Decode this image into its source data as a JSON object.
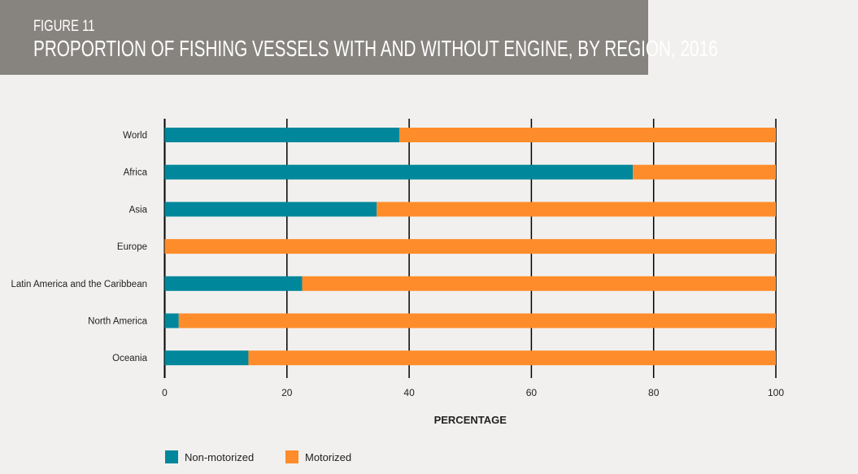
{
  "header": {
    "figure": "FIGURE 11",
    "title": "PROPORTION OF FISHING VESSELS WITH AND WITHOUT ENGINE, BY REGION, 2016"
  },
  "chart_data": {
    "type": "bar",
    "orientation": "horizontal",
    "stacked": true,
    "categories": [
      "World",
      "Africa",
      "Asia",
      "Europe",
      "Latin America and the Caribbean",
      "North America",
      "Oceania"
    ],
    "series": [
      {
        "name": "Non-motorized",
        "color": "#00879c",
        "values": [
          38.4,
          76.6,
          34.7,
          0,
          22.5,
          2.3,
          13.7
        ]
      },
      {
        "name": "Motorized",
        "color": "#ff8c2a",
        "values": [
          61.6,
          23.4,
          65.3,
          100,
          77.5,
          97.7,
          86.3
        ]
      }
    ],
    "xlabel": "PERCENTAGE",
    "xlim": [
      0,
      100
    ],
    "xticks": [
      "0",
      "20",
      "40",
      "60",
      "80",
      "100"
    ],
    "grid": "vertical",
    "legend": "bottom-left"
  }
}
